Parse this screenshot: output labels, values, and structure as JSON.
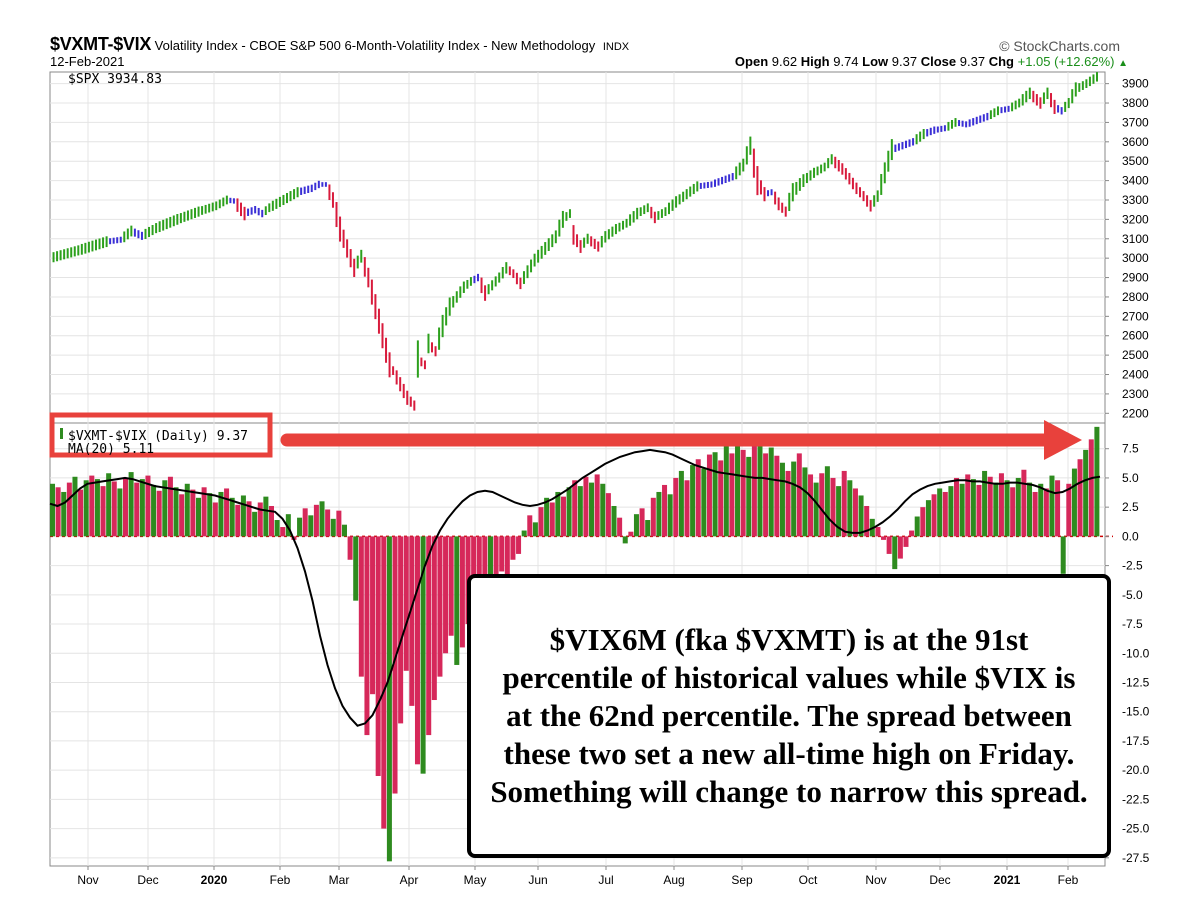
{
  "header": {
    "symbol": "$VXMT-$VIX",
    "description": "Volatility Index - CBOE S&P 500 6-Month-Volatility Index - New Methodology",
    "exchange": "INDX",
    "date": "12-Feb-2021",
    "brand": "© StockCharts.com",
    "ohlc": {
      "open_label": "Open",
      "open": "9.62",
      "high_label": "High",
      "high": "9.74",
      "low_label": "Low",
      "low": "9.37",
      "close_label": "Close",
      "close": "9.37",
      "chg_label": "Chg",
      "chg": "+1.05 (+12.62%)"
    }
  },
  "annotation": {
    "text": "$VIX6M (fka $VXMT) is at the 91st percentile of historical values while $VIX is at the 62nd percentile. The spread between these two set a new all-time high on Friday. Something will change to narrow this spread."
  },
  "colors": {
    "up": "#2e8b1f",
    "down": "#d6285a",
    "spx_up": "#2ca01c",
    "spx_down": "#d81b3c",
    "spx_neutral": "#3a2fd6",
    "ma": "#000000",
    "callout": "#e8413c",
    "zero_line": "#cc0000",
    "grid": "#e4e4e4"
  },
  "chart_data": [
    {
      "type": "line",
      "title": "$SPX",
      "legend": "$SPX 3934.83",
      "y_ticks": [
        "3900",
        "3800",
        "3700",
        "3600",
        "3500",
        "3400",
        "3300",
        "3200",
        "3100",
        "3000",
        "2900",
        "2800",
        "2700",
        "2600",
        "2500",
        "2400",
        "2300",
        "2200"
      ],
      "ylim": [
        2150,
        3960
      ],
      "x_labels": [
        "Nov",
        "Dec",
        "2020",
        "Feb",
        "Mar",
        "Apr",
        "May",
        "Jun",
        "Jul",
        "Aug",
        "Sep",
        "Oct",
        "Nov",
        "Dec",
        "2021",
        "Feb"
      ],
      "x_labels_bold": [
        "2020",
        "2021"
      ],
      "series": [
        {
          "name": "$SPX",
          "points": [
            [
              0,
              3000
            ],
            [
              8,
              3040
            ],
            [
              16,
              3085
            ],
            [
              20,
              3095
            ],
            [
              23,
              3140
            ],
            [
              26,
              3115
            ],
            [
              30,
              3155
            ],
            [
              36,
              3200
            ],
            [
              42,
              3240
            ],
            [
              47,
              3270
            ],
            [
              50,
              3300
            ],
            [
              52,
              3295
            ],
            [
              55,
              3230
            ],
            [
              58,
              3250
            ],
            [
              60,
              3230
            ],
            [
              62,
              3260
            ],
            [
              66,
              3300
            ],
            [
              70,
              3340
            ],
            [
              74,
              3360
            ],
            [
              76,
              3380
            ],
            [
              78,
              3380
            ],
            [
              80,
              3300
            ],
            [
              82,
              3150
            ],
            [
              84,
              3050
            ],
            [
              86,
              2950
            ],
            [
              88,
              3010
            ],
            [
              90,
              2900
            ],
            [
              92,
              2750
            ],
            [
              94,
              2600
            ],
            [
              96,
              2450
            ],
            [
              97,
              2420
            ],
            [
              99,
              2350
            ],
            [
              101,
              2280
            ],
            [
              103,
              2240
            ],
            [
              104,
              2480
            ],
            [
              106,
              2450
            ],
            [
              107,
              2560
            ],
            [
              109,
              2520
            ],
            [
              111,
              2650
            ],
            [
              113,
              2750
            ],
            [
              115,
              2800
            ],
            [
              117,
              2850
            ],
            [
              119,
              2880
            ],
            [
              121,
              2900
            ],
            [
              123,
              2820
            ],
            [
              125,
              2860
            ],
            [
              127,
              2900
            ],
            [
              129,
              2950
            ],
            [
              131,
              2920
            ],
            [
              133,
              2870
            ],
            [
              135,
              2930
            ],
            [
              137,
              2990
            ],
            [
              140,
              3050
            ],
            [
              143,
              3110
            ],
            [
              145,
              3200
            ],
            [
              147,
              3230
            ],
            [
              148,
              3120
            ],
            [
              150,
              3060
            ],
            [
              152,
              3100
            ],
            [
              155,
              3060
            ],
            [
              157,
              3110
            ],
            [
              160,
              3150
            ],
            [
              163,
              3180
            ],
            [
              166,
              3230
            ],
            [
              169,
              3260
            ],
            [
              171,
              3210
            ],
            [
              174,
              3240
            ],
            [
              177,
              3290
            ],
            [
              180,
              3330
            ],
            [
              183,
              3370
            ],
            [
              187,
              3380
            ],
            [
              190,
              3400
            ],
            [
              193,
              3420
            ],
            [
              196,
              3480
            ],
            [
              198,
              3580
            ],
            [
              200,
              3400
            ],
            [
              202,
              3330
            ],
            [
              204,
              3340
            ],
            [
              206,
              3280
            ],
            [
              208,
              3240
            ],
            [
              210,
              3340
            ],
            [
              213,
              3400
            ],
            [
              216,
              3440
            ],
            [
              219,
              3470
            ],
            [
              221,
              3510
            ],
            [
              224,
              3460
            ],
            [
              226,
              3410
            ],
            [
              228,
              3360
            ],
            [
              230,
              3320
            ],
            [
              232,
              3270
            ],
            [
              234,
              3320
            ],
            [
              236,
              3440
            ],
            [
              238,
              3560
            ],
            [
              241,
              3580
            ],
            [
              244,
              3600
            ],
            [
              247,
              3640
            ],
            [
              250,
              3660
            ],
            [
              253,
              3670
            ],
            [
              256,
              3700
            ],
            [
              259,
              3690
            ],
            [
              262,
              3710
            ],
            [
              265,
              3730
            ],
            [
              268,
              3760
            ],
            [
              271,
              3770
            ],
            [
              274,
              3800
            ],
            [
              277,
              3850
            ],
            [
              280,
              3800
            ],
            [
              282,
              3850
            ],
            [
              284,
              3780
            ],
            [
              286,
              3760
            ],
            [
              288,
              3800
            ],
            [
              290,
              3870
            ],
            [
              293,
              3900
            ],
            [
              296,
              3935
            ]
          ]
        }
      ]
    },
    {
      "type": "bar",
      "title": "$VXMT-$VIX",
      "legend": "$VXMT-$VIX (Daily) 9.37",
      "legend_secondary": "MA(20) 5.11",
      "last_value": 9.37,
      "moving_average_latest": 5.11,
      "y_ticks": [
        "7.5",
        "5.0",
        "2.5",
        "0.0",
        "-2.5",
        "-5.0",
        "-7.5",
        "-10.0",
        "-12.5",
        "-15.0",
        "-17.5",
        "-20.0",
        "-22.5",
        "-25.0",
        "-27.5"
      ],
      "ylim": [
        -28.2,
        9.7
      ],
      "x_labels": [
        "Nov",
        "Dec",
        "2020",
        "Feb",
        "Mar",
        "Apr",
        "May",
        "Jun",
        "Jul",
        "Aug",
        "Sep",
        "Oct",
        "Nov",
        "Dec",
        "2021",
        "Feb"
      ],
      "series": [
        {
          "name": "$VXMT-$VIX (Daily)",
          "values": [
            4.5,
            4.2,
            3.8,
            4.6,
            5.1,
            4.0,
            4.8,
            5.2,
            4.9,
            4.3,
            5.4,
            4.7,
            4.1,
            5.0,
            5.5,
            4.6,
            4.9,
            5.2,
            4.4,
            3.9,
            4.8,
            5.1,
            4.2,
            3.6,
            4.5,
            4.0,
            3.3,
            4.2,
            3.7,
            2.9,
            3.8,
            4.1,
            3.3,
            2.7,
            3.5,
            3.0,
            2.1,
            2.9,
            3.4,
            2.6,
            1.4,
            0.8,
            1.9,
            -0.3,
            1.6,
            2.4,
            1.8,
            2.7,
            3.0,
            2.3,
            1.5,
            2.2,
            1.0,
            -2.0,
            -5.5,
            -12.0,
            -17.0,
            -13.5,
            -20.5,
            -25.0,
            -27.8,
            -22.0,
            -16.0,
            -11.5,
            -14.5,
            -19.5,
            -20.3,
            -17.0,
            -14.0,
            -12.0,
            -10.0,
            -8.5,
            -11.0,
            -9.5,
            -7.5,
            -6.0,
            -8.5,
            -6.5,
            -4.5,
            -5.5,
            -3.0,
            -4.0,
            -2.0,
            -1.5,
            0.5,
            1.8,
            1.2,
            2.5,
            3.3,
            2.9,
            3.8,
            3.4,
            4.2,
            4.8,
            4.3,
            5.1,
            4.6,
            5.3,
            4.5,
            3.7,
            2.6,
            1.6,
            -0.6,
            0.4,
            1.9,
            2.4,
            1.4,
            3.3,
            3.8,
            4.4,
            3.6,
            5.0,
            5.6,
            4.8,
            6.1,
            6.6,
            5.8,
            7.0,
            7.2,
            6.5,
            7.7,
            7.1,
            8.0,
            7.4,
            6.8,
            8.3,
            7.9,
            7.1,
            7.6,
            6.9,
            6.3,
            5.6,
            6.4,
            7.1,
            5.9,
            5.3,
            4.6,
            5.4,
            6.0,
            5.0,
            4.3,
            5.6,
            4.8,
            4.1,
            3.5,
            2.6,
            1.5,
            0.8,
            -0.3,
            -1.5,
            -2.8,
            -1.9,
            -0.9,
            0.5,
            1.7,
            2.5,
            3.1,
            3.6,
            4.1,
            3.8,
            4.3,
            5.0,
            4.5,
            5.3,
            4.9,
            4.4,
            5.6,
            5.1,
            4.6,
            5.4,
            4.8,
            4.2,
            5.0,
            5.7,
            4.6,
            3.8,
            4.5,
            4.1,
            5.2,
            4.8,
            -3.2,
            4.5,
            5.8,
            6.6,
            7.4,
            8.3,
            9.37
          ]
        },
        {
          "name": "MA(20)",
          "values": [
            2.8,
            2.6,
            2.9,
            3.5,
            4.1,
            4.5,
            4.6,
            4.7,
            4.8,
            4.9,
            5.0,
            4.9,
            4.7,
            4.5,
            4.3,
            4.2,
            4.1,
            4.0,
            3.9,
            3.8,
            3.7,
            3.6,
            3.5,
            3.3,
            3.1,
            2.9,
            2.7,
            2.5,
            2.3,
            2.2,
            2.1,
            1.5,
            0.5,
            -1.0,
            -3.0,
            -5.5,
            -8.5,
            -11.0,
            -13.0,
            -14.5,
            -15.5,
            -16.2,
            -16.0,
            -15.3,
            -14.0,
            -12.5,
            -10.5,
            -8.5,
            -6.5,
            -4.5,
            -2.5,
            -0.8,
            0.5,
            1.5,
            2.3,
            3.0,
            3.5,
            3.8,
            3.9,
            3.8,
            3.5,
            3.2,
            2.9,
            2.7,
            2.6,
            2.7,
            2.9,
            3.2,
            3.6,
            4.0,
            4.5,
            5.0,
            5.4,
            5.8,
            6.2,
            6.5,
            6.8,
            7.0,
            7.2,
            7.3,
            7.4,
            7.3,
            7.2,
            7.0,
            6.7,
            6.4,
            6.1,
            5.9,
            5.7,
            5.5,
            5.4,
            5.3,
            5.2,
            5.1,
            5.0,
            5.0,
            4.9,
            4.8,
            4.7,
            4.5,
            4.2,
            3.7,
            3.0,
            2.2,
            1.4,
            0.8,
            0.4,
            0.3,
            0.3,
            0.5,
            0.8,
            1.2,
            1.7,
            2.3,
            3.0,
            3.6,
            4.0,
            4.3,
            4.5,
            4.6,
            4.7,
            4.8,
            4.8,
            4.7,
            4.7,
            4.6,
            4.5,
            4.5,
            4.6,
            4.6,
            4.5,
            4.4,
            4.2,
            3.9,
            3.7,
            3.8,
            4.1,
            4.5,
            4.8,
            5.0,
            5.11
          ]
        }
      ]
    }
  ]
}
